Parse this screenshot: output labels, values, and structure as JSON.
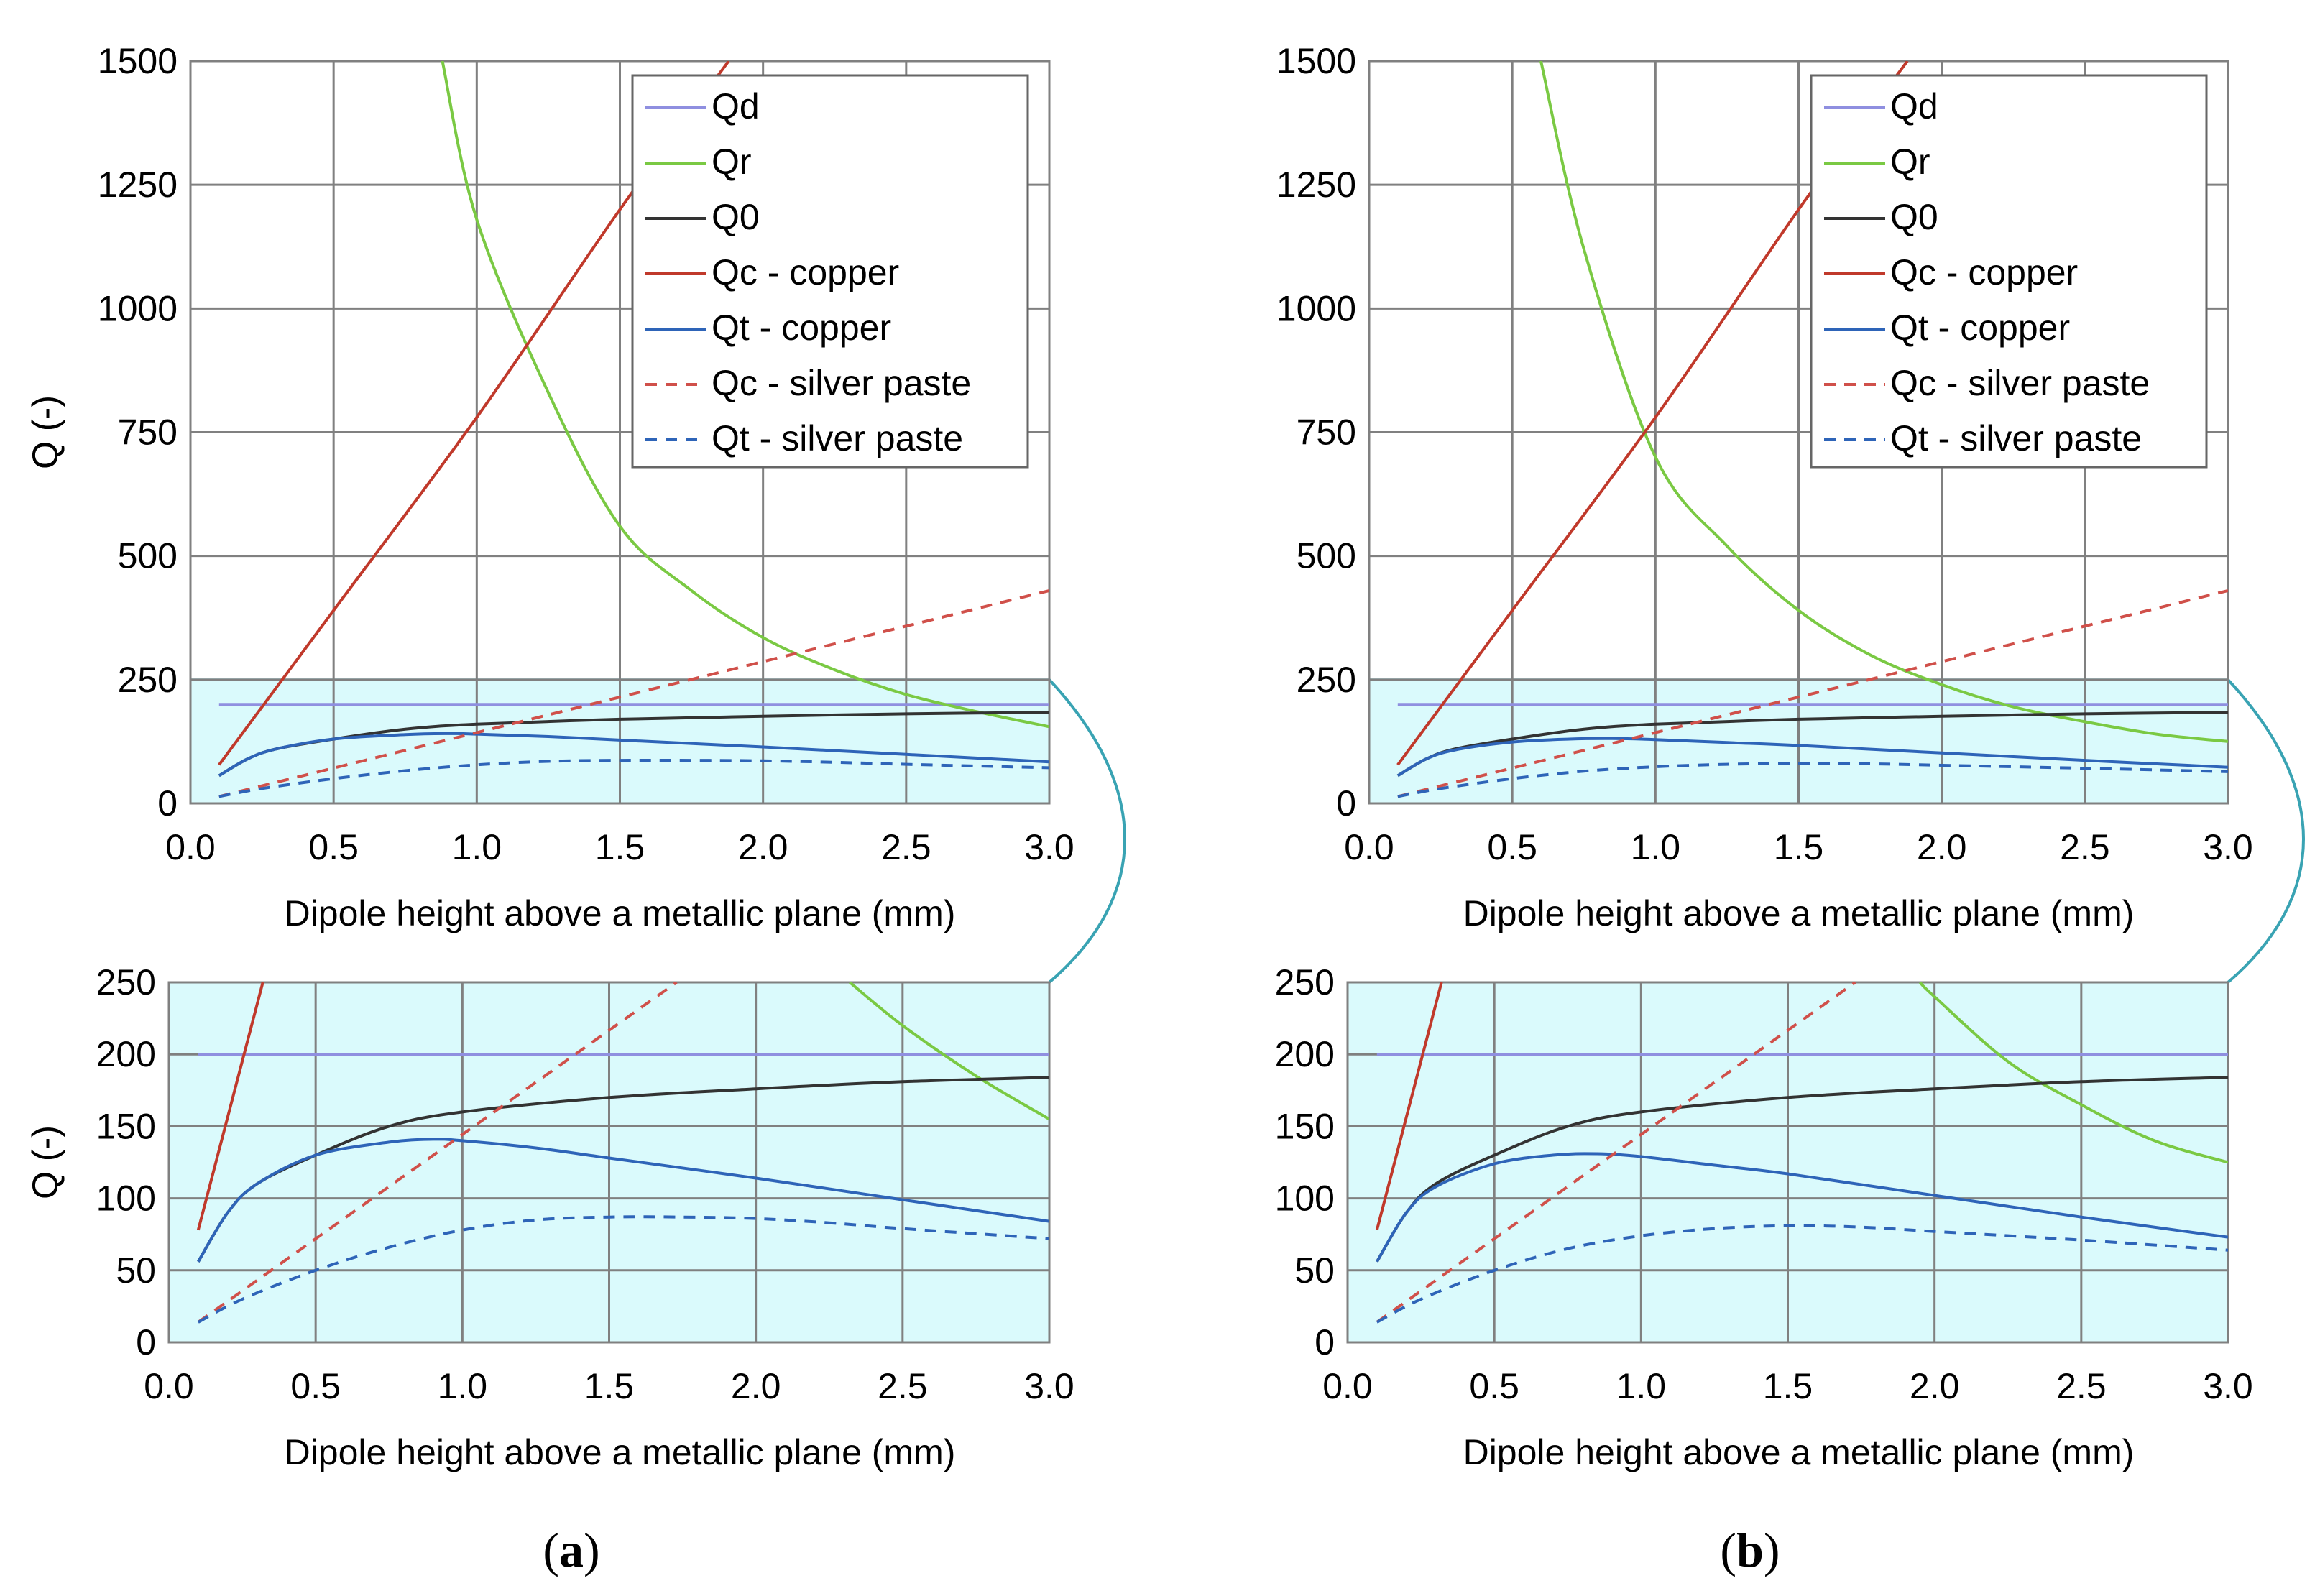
{
  "figure": {
    "colors": {
      "Qd": "#8f8fe0",
      "Qr": "#7ac943",
      "Q0": "#333333",
      "Qc_copper": "#c0392b",
      "Qt_copper": "#2e64b8",
      "Qc_silver": "#d0504a",
      "Qt_silver": "#2e64b8",
      "highlight_fill": "#dafafc",
      "highlight_stroke": "#39a3b3",
      "grid": "#808080"
    },
    "panels": [
      {
        "label": "a",
        "caption_open": "(",
        "caption_close": ")"
      },
      {
        "label": "b",
        "caption_open": "(",
        "caption_close": ")"
      }
    ]
  },
  "chart_data": [
    {
      "panel": "a",
      "view": "full",
      "type": "line",
      "xlabel": "Dipole height above a metallic plane (mm)",
      "ylabel": "Q (-)",
      "xlim": [
        0,
        3
      ],
      "ylim": [
        0,
        1500
      ],
      "xticks": [
        "0.0",
        "0.5",
        "1.0",
        "1.5",
        "2.0",
        "2.5",
        "3.0"
      ],
      "yticks": [
        "0",
        "250",
        "500",
        "750",
        "1000",
        "1250",
        "1500"
      ],
      "highlight_ylim": [
        0,
        250
      ],
      "legend_position": "top-right",
      "series": [
        {
          "name": "Qd",
          "key": "Qd",
          "style": "solid",
          "x": [
            0.1,
            3.0
          ],
          "y": [
            200,
            200
          ]
        },
        {
          "name": "Qr",
          "key": "Qr",
          "style": "solid",
          "x": [
            0.88,
            1.0,
            1.25,
            1.5,
            1.75,
            2.0,
            2.25,
            2.5,
            2.75,
            3.0
          ],
          "y": [
            1500,
            1180,
            830,
            560,
            430,
            335,
            270,
            220,
            185,
            155
          ]
        },
        {
          "name": "Q0",
          "key": "Q0",
          "style": "solid",
          "x": [
            0.1,
            0.2,
            0.3,
            0.5,
            0.75,
            1.0,
            1.5,
            2.0,
            2.5,
            3.0
          ],
          "y": [
            56,
            90,
            110,
            130,
            150,
            160,
            170,
            176,
            181,
            184
          ]
        },
        {
          "name": "Qc - copper",
          "key": "Qc_copper",
          "style": "solid",
          "x": [
            0.1,
            0.5,
            1.0,
            1.5,
            1.88
          ],
          "y": [
            78,
            390,
            780,
            1200,
            1500
          ]
        },
        {
          "name": "Qt - copper",
          "key": "Qt_copper",
          "style": "solid",
          "x": [
            0.1,
            0.2,
            0.3,
            0.5,
            0.75,
            0.9,
            1.0,
            1.25,
            1.5,
            2.0,
            2.5,
            3.0
          ],
          "y": [
            56,
            90,
            110,
            130,
            139,
            141,
            140,
            135,
            128,
            114,
            99,
            84
          ]
        },
        {
          "name": "Qc - silver paste",
          "key": "Qc_silver",
          "style": "dashed",
          "x": [
            0.1,
            3.0
          ],
          "y": [
            14,
            430
          ]
        },
        {
          "name": "Qt - silver paste",
          "key": "Qt_silver",
          "style": "dashed",
          "x": [
            0.1,
            0.25,
            0.5,
            0.75,
            1.0,
            1.25,
            1.5,
            1.75,
            2.0,
            2.25,
            2.5,
            3.0
          ],
          "y": [
            14,
            30,
            50,
            66,
            78,
            85,
            87,
            87,
            86,
            83,
            79,
            72
          ]
        }
      ]
    },
    {
      "panel": "a",
      "view": "zoom",
      "type": "line",
      "xlabel": "Dipole height above a metallic plane (mm)",
      "ylabel": "Q (-)",
      "xlim": [
        0,
        3
      ],
      "ylim": [
        0,
        250
      ],
      "xticks": [
        "0.0",
        "0.5",
        "1.0",
        "1.5",
        "2.0",
        "2.5",
        "3.0"
      ],
      "yticks": [
        "0",
        "50",
        "100",
        "150",
        "200",
        "250"
      ],
      "series": [
        {
          "name": "Qd",
          "key": "Qd",
          "style": "solid",
          "x": [
            0.1,
            3.0
          ],
          "y": [
            200,
            200
          ]
        },
        {
          "name": "Qr",
          "key": "Qr",
          "style": "solid",
          "x": [
            2.32,
            2.5,
            2.75,
            3.0
          ],
          "y": [
            250,
            220,
            185,
            155
          ]
        },
        {
          "name": "Q0",
          "key": "Q0",
          "style": "solid",
          "x": [
            0.1,
            0.2,
            0.3,
            0.5,
            0.75,
            1.0,
            1.5,
            2.0,
            2.5,
            3.0
          ],
          "y": [
            56,
            90,
            110,
            130,
            150,
            160,
            170,
            176,
            181,
            184
          ]
        },
        {
          "name": "Qc - copper",
          "key": "Qc_copper",
          "style": "solid",
          "x": [
            0.1,
            0.32
          ],
          "y": [
            78,
            250
          ]
        },
        {
          "name": "Qt - copper",
          "key": "Qt_copper",
          "style": "solid",
          "x": [
            0.1,
            0.2,
            0.3,
            0.5,
            0.75,
            0.9,
            1.0,
            1.25,
            1.5,
            2.0,
            2.5,
            3.0
          ],
          "y": [
            56,
            90,
            110,
            130,
            139,
            141,
            140,
            135,
            128,
            114,
            99,
            84
          ]
        },
        {
          "name": "Qc - silver paste",
          "key": "Qc_silver",
          "style": "dashed",
          "x": [
            0.1,
            1.73
          ],
          "y": [
            14,
            250
          ]
        },
        {
          "name": "Qt - silver paste",
          "key": "Qt_silver",
          "style": "dashed",
          "x": [
            0.1,
            0.25,
            0.5,
            0.75,
            1.0,
            1.25,
            1.5,
            1.75,
            2.0,
            2.25,
            2.5,
            3.0
          ],
          "y": [
            14,
            30,
            50,
            66,
            78,
            85,
            87,
            87,
            86,
            83,
            79,
            72
          ]
        }
      ]
    },
    {
      "panel": "b",
      "view": "full",
      "type": "line",
      "xlabel": "Dipole height above a metallic plane (mm)",
      "ylabel": "Q (-)",
      "xlim": [
        0,
        3
      ],
      "ylim": [
        0,
        1500
      ],
      "xticks": [
        "0.0",
        "0.5",
        "1.0",
        "1.5",
        "2.0",
        "2.5",
        "3.0"
      ],
      "yticks": [
        "0",
        "250",
        "500",
        "750",
        "1000",
        "1250",
        "1500"
      ],
      "highlight_ylim": [
        0,
        250
      ],
      "legend_position": "top-right",
      "series": [
        {
          "name": "Qd",
          "key": "Qd",
          "style": "solid",
          "x": [
            0.1,
            3.0
          ],
          "y": [
            200,
            200
          ]
        },
        {
          "name": "Qr",
          "key": "Qr",
          "style": "solid",
          "x": [
            0.6,
            0.75,
            1.0,
            1.25,
            1.5,
            1.75,
            2.0,
            2.25,
            2.5,
            2.75,
            3.0
          ],
          "y": [
            1500,
            1120,
            700,
            520,
            390,
            300,
            240,
            195,
            165,
            140,
            125
          ]
        },
        {
          "name": "Q0",
          "key": "Q0",
          "style": "solid",
          "x": [
            0.1,
            0.2,
            0.3,
            0.5,
            0.75,
            1.0,
            1.5,
            2.0,
            2.5,
            3.0
          ],
          "y": [
            56,
            90,
            110,
            130,
            150,
            160,
            170,
            176,
            181,
            184
          ]
        },
        {
          "name": "Qc - copper",
          "key": "Qc_copper",
          "style": "solid",
          "x": [
            0.1,
            0.5,
            1.0,
            1.5,
            1.88
          ],
          "y": [
            78,
            390,
            780,
            1200,
            1500
          ]
        },
        {
          "name": "Qt - copper",
          "key": "Qt_copper",
          "style": "solid",
          "x": [
            0.1,
            0.2,
            0.3,
            0.5,
            0.7,
            0.85,
            1.0,
            1.25,
            1.5,
            2.0,
            2.5,
            3.0
          ],
          "y": [
            56,
            90,
            108,
            124,
            130,
            131,
            129,
            123,
            117,
            102,
            87,
            73
          ]
        },
        {
          "name": "Qc - silver paste",
          "key": "Qc_silver",
          "style": "dashed",
          "x": [
            0.1,
            3.0
          ],
          "y": [
            14,
            430
          ]
        },
        {
          "name": "Qt - silver paste",
          "key": "Qt_silver",
          "style": "dashed",
          "x": [
            0.1,
            0.25,
            0.5,
            0.75,
            1.0,
            1.25,
            1.5,
            1.75,
            2.0,
            2.5,
            3.0
          ],
          "y": [
            14,
            30,
            50,
            65,
            74,
            79,
            81,
            80,
            77,
            71,
            64
          ]
        }
      ]
    },
    {
      "panel": "b",
      "view": "zoom",
      "type": "line",
      "xlabel": "Dipole height above a metallic plane (mm)",
      "ylabel": "Q (-)",
      "xlim": [
        0,
        3
      ],
      "ylim": [
        0,
        250
      ],
      "xticks": [
        "0.0",
        "0.5",
        "1.0",
        "1.5",
        "2.0",
        "2.5",
        "3.0"
      ],
      "yticks": [
        "0",
        "50",
        "100",
        "150",
        "200",
        "250"
      ],
      "series": [
        {
          "name": "Qd",
          "key": "Qd",
          "style": "solid",
          "x": [
            0.1,
            3.0
          ],
          "y": [
            200,
            200
          ]
        },
        {
          "name": "Qr",
          "key": "Qr",
          "style": "solid",
          "x": [
            1.95,
            2.0,
            2.25,
            2.5,
            2.75,
            3.0
          ],
          "y": [
            250,
            240,
            195,
            165,
            140,
            125
          ]
        },
        {
          "name": "Q0",
          "key": "Q0",
          "style": "solid",
          "x": [
            0.1,
            0.2,
            0.3,
            0.5,
            0.75,
            1.0,
            1.5,
            2.0,
            2.5,
            3.0
          ],
          "y": [
            56,
            90,
            110,
            130,
            150,
            160,
            170,
            176,
            181,
            184
          ]
        },
        {
          "name": "Qc - copper",
          "key": "Qc_copper",
          "style": "solid",
          "x": [
            0.1,
            0.32
          ],
          "y": [
            78,
            250
          ]
        },
        {
          "name": "Qt - copper",
          "key": "Qt_copper",
          "style": "solid",
          "x": [
            0.1,
            0.2,
            0.3,
            0.5,
            0.7,
            0.85,
            1.0,
            1.25,
            1.5,
            2.0,
            2.5,
            3.0
          ],
          "y": [
            56,
            90,
            108,
            124,
            130,
            131,
            129,
            123,
            117,
            102,
            87,
            73
          ]
        },
        {
          "name": "Qc - silver paste",
          "key": "Qc_silver",
          "style": "dashed",
          "x": [
            0.1,
            1.73
          ],
          "y": [
            14,
            250
          ]
        },
        {
          "name": "Qt - silver paste",
          "key": "Qt_silver",
          "style": "dashed",
          "x": [
            0.1,
            0.25,
            0.5,
            0.75,
            1.0,
            1.25,
            1.5,
            1.75,
            2.0,
            2.5,
            3.0
          ],
          "y": [
            14,
            30,
            50,
            65,
            74,
            79,
            81,
            80,
            77,
            71,
            64
          ]
        }
      ]
    }
  ]
}
